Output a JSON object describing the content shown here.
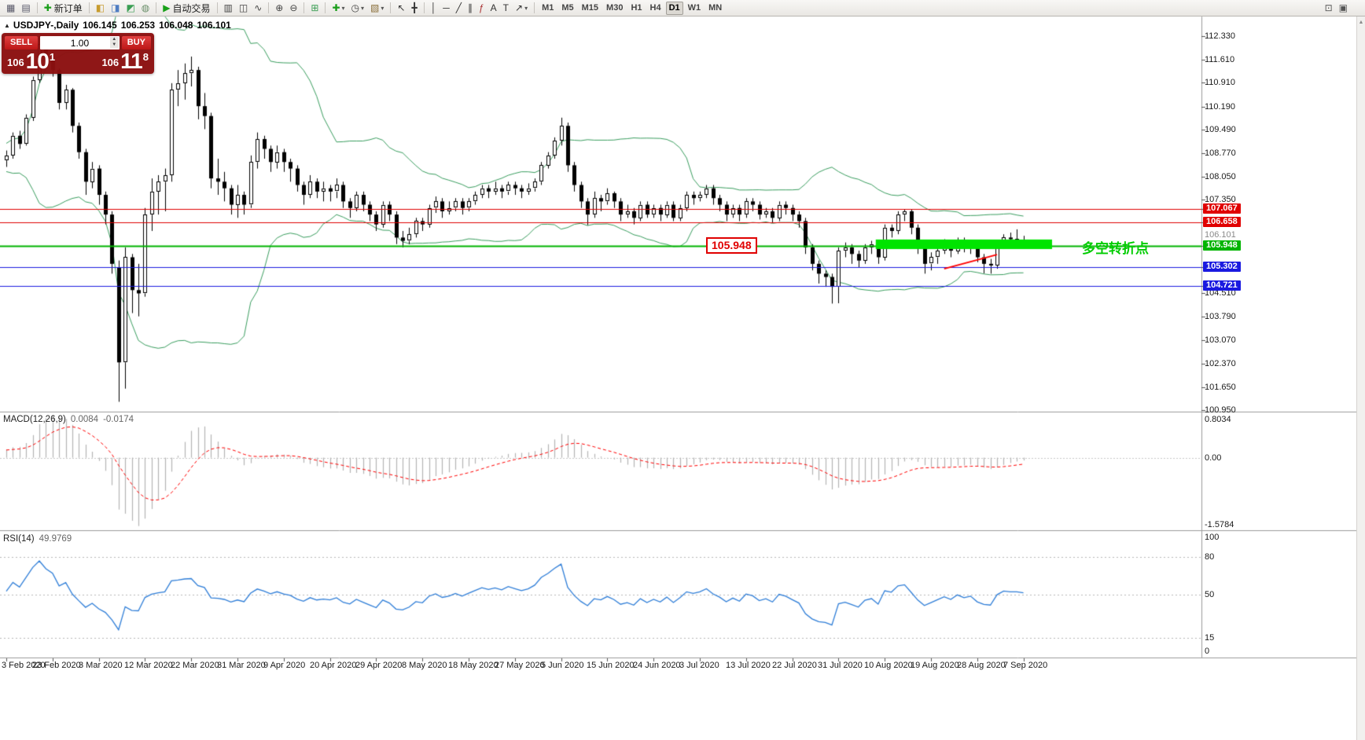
{
  "toolbar": {
    "groups": [
      [
        {
          "name": "new-chart-icon",
          "glyph": "▦",
          "color": "#556"
        },
        {
          "name": "profiles-icon",
          "glyph": "▤",
          "color": "#556"
        }
      ],
      [
        {
          "name": "new-order-button",
          "glyph": "✚",
          "color": "#1a9e1a",
          "label": "新订单"
        }
      ],
      [
        {
          "name": "market-watch-icon",
          "glyph": "◧",
          "color": "#c79b2e"
        },
        {
          "name": "data-window-icon",
          "glyph": "◨",
          "color": "#4f7dc2"
        },
        {
          "name": "navigator-icon",
          "glyph": "◩",
          "color": "#3a9e53"
        },
        {
          "name": "web-terminal-icon",
          "glyph": "◍",
          "color": "#6a8f6a"
        }
      ],
      [
        {
          "name": "autotrading-button",
          "glyph": "▶",
          "color": "#18a018",
          "label": "自动交易"
        }
      ],
      [
        {
          "name": "bar-chart-icon",
          "glyph": "▥",
          "color": "#444"
        },
        {
          "name": "candlestick-chart-icon",
          "glyph": "◫",
          "color": "#444"
        },
        {
          "name": "line-chart-icon",
          "glyph": "∿",
          "color": "#444"
        }
      ],
      [
        {
          "name": "zoom-in-icon",
          "glyph": "⊕",
          "color": "#444"
        },
        {
          "name": "zoom-out-icon",
          "glyph": "⊖",
          "color": "#444"
        }
      ],
      [
        {
          "name": "tile-windows-icon",
          "glyph": "⊞",
          "color": "#3a9e53"
        }
      ],
      [
        {
          "name": "indicators-button",
          "glyph": "✚",
          "color": "#1a9e1a",
          "dropdown": true
        },
        {
          "name": "periods-button",
          "glyph": "◷",
          "color": "#444",
          "dropdown": true
        },
        {
          "name": "templates-button",
          "glyph": "▧",
          "color": "#8a6f3a",
          "dropdown": true
        }
      ],
      [
        {
          "name": "cursor-icon",
          "glyph": "↖",
          "color": "#333"
        },
        {
          "name": "crosshair-icon",
          "glyph": "╋",
          "color": "#333"
        }
      ],
      [
        {
          "name": "vertical-line-icon",
          "glyph": "│",
          "color": "#333"
        },
        {
          "name": "horizontal-line-icon",
          "glyph": "─",
          "color": "#333"
        },
        {
          "name": "trendline-icon",
          "glyph": "╱",
          "color": "#333"
        },
        {
          "name": "channel-icon",
          "glyph": "∥",
          "color": "#333"
        },
        {
          "name": "fibonacci-icon",
          "glyph": "ƒ",
          "color": "#a33"
        },
        {
          "name": "text-icon",
          "glyph": "A",
          "color": "#333"
        },
        {
          "name": "label-icon",
          "glyph": "T",
          "color": "#333"
        },
        {
          "name": "arrows-icon",
          "glyph": "↗",
          "color": "#333",
          "dropdown": true
        }
      ]
    ],
    "timeframes": {
      "items": [
        "M1",
        "M5",
        "M15",
        "M30",
        "H1",
        "H4",
        "D1",
        "W1",
        "MN"
      ],
      "active": "D1"
    },
    "right_items": [
      {
        "name": "print-icon",
        "glyph": "⊡",
        "color": "#555"
      },
      {
        "name": "layout-icon",
        "glyph": "▣",
        "color": "#555"
      }
    ]
  },
  "chart": {
    "header": {
      "marker": "▲",
      "symbol": "USDJPY-,Daily",
      "open": "106.145",
      "high": "106.253",
      "low": "106.048",
      "close": "106.101"
    },
    "trade_panel": {
      "sell_label": "SELL",
      "buy_label": "BUY",
      "volume": "1.00",
      "bid": {
        "prefix": "106",
        "big": "10",
        "sup": "1"
      },
      "ask": {
        "prefix": "106",
        "big": "11",
        "sup": "8"
      }
    },
    "axis": {
      "ticks": [
        "112.330",
        "111.610",
        "110.910",
        "110.190",
        "109.490",
        "108.770",
        "108.050",
        "107.350",
        "104.510",
        "103.790",
        "103.070",
        "102.370",
        "101.650",
        "100.950"
      ],
      "current_price": "106.101",
      "badges": [
        {
          "text": "107.067",
          "color": "#e00000"
        },
        {
          "text": "106.658",
          "color": "#e00000"
        },
        {
          "text": "105.948",
          "color": "#00b400"
        },
        {
          "text": "105.302",
          "color": "#1a1ae0"
        },
        {
          "text": "104.721",
          "color": "#1a1ae0"
        }
      ]
    },
    "hlines": [
      {
        "price": 107.067,
        "color": "#e00000",
        "width": 1
      },
      {
        "price": 106.658,
        "color": "#e00000",
        "width": 1
      },
      {
        "price": 105.948,
        "color": "#00b400",
        "width": 2
      },
      {
        "price": 105.302,
        "color": "#1a1ae0",
        "width": 1
      },
      {
        "price": 104.721,
        "color": "#1a1ae0",
        "width": 1
      }
    ],
    "zone": {
      "start_index": 132,
      "end_x": 1338,
      "price_top": 106.14,
      "price_bottom": 105.85,
      "color": "#00e400"
    },
    "trendline": {
      "start_index": 142,
      "start_price": 105.25,
      "end_index": 150,
      "end_price": 105.68,
      "color": "#ff0000",
      "width": 2
    },
    "annotations": {
      "price_label": {
        "text": "105.948",
        "color": "#e00000"
      },
      "turning_point": {
        "text": "多空转折点",
        "color": "#00cc00"
      }
    },
    "bollinger": {
      "period": 20,
      "deviation": 2,
      "color": "#3a9e5f"
    }
  },
  "macd": {
    "label": "MACD(12,26,9)",
    "value_main": "0.0084",
    "value_signal": "-0.0174",
    "scale": {
      "top": "0.8034",
      "zero": "0.00",
      "bottom": "-1.5784"
    },
    "colors": {
      "hist": "#b4b4b4",
      "signal": "#ff0000"
    }
  },
  "rsi": {
    "label": "RSI(14)",
    "value": "49.9769",
    "period": 14,
    "scale": [
      "100",
      "80",
      "50",
      "15",
      "0"
    ],
    "levels": [
      80,
      50,
      15
    ],
    "color": "#2f7ed8"
  },
  "chart_data": {
    "type": "candlestick",
    "title": "USDJPY-,Daily",
    "symbol": "USDJPY-",
    "timeframe": "Daily",
    "ylim": [
      100.95,
      112.33
    ],
    "grid": "off",
    "x_label_step": 7,
    "x_labels": [
      "3 Feb 2020",
      "23 Feb 2020",
      "3 Mar 2020",
      "12 Mar 2020",
      "22 Mar 2020",
      "31 Mar 2020",
      "9 Apr 2020",
      "20 Apr 2020",
      "29 Apr 2020",
      "8 May 2020",
      "18 May 2020",
      "27 May 2020",
      "5 Jun 2020",
      "15 Jun 2020",
      "24 Jun 2020",
      "3 Jul 2020",
      "13 Jul 2020",
      "22 Jul 2020",
      "31 Jul 2020",
      "10 Aug 2020",
      "19 Aug 2020",
      "28 Aug 2020",
      "7 Sep 2020"
    ],
    "horizontal_levels": [
      107.067,
      106.658,
      105.948,
      105.302,
      104.721
    ],
    "candles": [
      [
        108.55,
        108.85,
        108.35,
        108.7
      ],
      [
        108.7,
        109.4,
        108.6,
        109.3
      ],
      [
        109.3,
        109.45,
        108.9,
        109.05
      ],
      [
        109.05,
        109.95,
        109.0,
        109.85
      ],
      [
        109.85,
        111.1,
        109.75,
        111.0
      ],
      [
        111.0,
        112.33,
        110.9,
        112.1
      ],
      [
        112.1,
        112.2,
        111.4,
        111.6
      ],
      [
        111.6,
        111.75,
        111.1,
        111.3
      ],
      [
        111.3,
        111.35,
        110.1,
        110.3
      ],
      [
        110.3,
        110.85,
        110.1,
        110.7
      ],
      [
        110.7,
        110.75,
        109.4,
        109.6
      ],
      [
        109.6,
        109.7,
        108.6,
        108.8
      ],
      [
        108.8,
        108.9,
        107.5,
        107.9
      ],
      [
        107.9,
        108.5,
        107.7,
        108.3
      ],
      [
        108.3,
        108.4,
        107.2,
        107.5
      ],
      [
        107.5,
        107.6,
        106.6,
        106.9
      ],
      [
        106.9,
        107.0,
        105.1,
        105.4
      ],
      [
        105.3,
        105.5,
        101.2,
        102.4
      ],
      [
        102.4,
        105.9,
        101.6,
        105.6
      ],
      [
        105.6,
        105.7,
        103.9,
        104.6
      ],
      [
        104.6,
        105.4,
        103.8,
        104.5
      ],
      [
        104.5,
        107.1,
        104.4,
        106.9
      ],
      [
        106.9,
        108.0,
        106.4,
        107.6
      ],
      [
        107.6,
        108.1,
        106.9,
        107.9
      ],
      [
        107.9,
        108.3,
        107.0,
        108.1
      ],
      [
        108.1,
        110.9,
        107.9,
        110.7
      ],
      [
        110.7,
        111.3,
        110.2,
        110.9
      ],
      [
        110.9,
        111.5,
        110.4,
        111.2
      ],
      [
        111.2,
        111.71,
        110.8,
        111.3
      ],
      [
        111.3,
        111.4,
        109.8,
        110.2
      ],
      [
        110.2,
        110.6,
        109.5,
        109.9
      ],
      [
        109.9,
        110.0,
        107.7,
        108.0
      ],
      [
        108.0,
        108.6,
        107.5,
        107.9
      ],
      [
        107.9,
        108.2,
        107.3,
        107.7
      ],
      [
        107.7,
        107.8,
        106.9,
        107.2
      ],
      [
        107.2,
        107.8,
        106.8,
        107.5
      ],
      [
        107.5,
        107.6,
        106.9,
        107.2
      ],
      [
        107.2,
        108.7,
        107.1,
        108.5
      ],
      [
        108.5,
        109.4,
        108.3,
        109.2
      ],
      [
        109.2,
        109.3,
        108.6,
        108.9
      ],
      [
        108.9,
        109.0,
        108.2,
        108.5
      ],
      [
        108.5,
        109.0,
        108.3,
        108.8
      ],
      [
        108.8,
        108.9,
        108.2,
        108.5
      ],
      [
        108.5,
        108.6,
        107.9,
        108.3
      ],
      [
        108.3,
        108.4,
        107.6,
        107.8
      ],
      [
        107.8,
        107.9,
        107.2,
        107.5
      ],
      [
        107.5,
        108.1,
        107.4,
        107.9
      ],
      [
        107.9,
        108.0,
        107.4,
        107.6
      ],
      [
        107.6,
        107.9,
        107.3,
        107.7
      ],
      [
        107.7,
        107.8,
        107.3,
        107.6
      ],
      [
        107.6,
        108.0,
        107.4,
        107.8
      ],
      [
        107.8,
        107.9,
        107.1,
        107.3
      ],
      [
        107.3,
        107.4,
        106.8,
        107.1
      ],
      [
        107.1,
        107.6,
        107.0,
        107.5
      ],
      [
        107.5,
        107.6,
        107.0,
        107.2
      ],
      [
        107.2,
        107.3,
        106.7,
        106.9
      ],
      [
        106.9,
        107.0,
        106.4,
        106.6
      ],
      [
        106.6,
        107.3,
        106.5,
        107.2
      ],
      [
        107.2,
        107.3,
        106.7,
        106.9
      ],
      [
        106.9,
        107.0,
        106.0,
        106.2
      ],
      [
        106.2,
        106.4,
        105.9,
        106.1
      ],
      [
        106.1,
        106.5,
        106.0,
        106.3
      ],
      [
        106.3,
        106.8,
        106.2,
        106.7
      ],
      [
        106.7,
        106.8,
        106.4,
        106.6
      ],
      [
        106.6,
        107.2,
        106.5,
        107.1
      ],
      [
        107.1,
        107.45,
        106.95,
        107.3
      ],
      [
        107.3,
        107.4,
        106.8,
        107.0
      ],
      [
        107.0,
        107.3,
        106.9,
        107.1
      ],
      [
        107.1,
        107.4,
        107.0,
        107.3
      ],
      [
        107.3,
        107.4,
        106.9,
        107.1
      ],
      [
        107.1,
        107.4,
        107.0,
        107.3
      ],
      [
        107.3,
        107.6,
        107.2,
        107.5
      ],
      [
        107.5,
        107.8,
        107.4,
        107.7
      ],
      [
        107.7,
        107.8,
        107.4,
        107.6
      ],
      [
        107.6,
        107.9,
        107.5,
        107.7
      ],
      [
        107.7,
        107.8,
        107.4,
        107.6
      ],
      [
        107.6,
        107.9,
        107.5,
        107.8
      ],
      [
        107.8,
        107.9,
        107.5,
        107.7
      ],
      [
        107.7,
        107.8,
        107.4,
        107.6
      ],
      [
        107.6,
        107.85,
        107.5,
        107.7
      ],
      [
        107.7,
        108.0,
        107.6,
        107.9
      ],
      [
        107.9,
        108.5,
        107.8,
        108.4
      ],
      [
        108.4,
        108.8,
        108.3,
        108.7
      ],
      [
        108.7,
        109.25,
        108.6,
        109.15
      ],
      [
        109.15,
        109.85,
        109.0,
        109.6
      ],
      [
        109.6,
        109.7,
        108.2,
        108.4
      ],
      [
        108.4,
        108.5,
        107.6,
        107.8
      ],
      [
        107.8,
        107.9,
        107.1,
        107.3
      ],
      [
        107.3,
        107.4,
        106.58,
        106.9
      ],
      [
        106.9,
        107.6,
        106.8,
        107.4
      ],
      [
        107.4,
        107.5,
        107.0,
        107.3
      ],
      [
        107.3,
        107.7,
        107.2,
        107.55
      ],
      [
        107.55,
        107.6,
        107.1,
        107.3
      ],
      [
        107.3,
        107.4,
        106.7,
        106.9
      ],
      [
        106.9,
        107.2,
        106.8,
        107.0
      ],
      [
        107.0,
        107.1,
        106.6,
        106.8
      ],
      [
        106.8,
        107.3,
        106.7,
        107.2
      ],
      [
        107.2,
        107.3,
        106.8,
        106.9
      ],
      [
        106.9,
        107.2,
        106.8,
        107.1
      ],
      [
        107.1,
        107.2,
        106.7,
        106.9
      ],
      [
        106.9,
        107.3,
        106.8,
        107.2
      ],
      [
        107.2,
        107.3,
        106.7,
        106.8
      ],
      [
        106.8,
        107.2,
        106.7,
        107.1
      ],
      [
        107.1,
        107.6,
        107.0,
        107.5
      ],
      [
        107.5,
        107.6,
        107.2,
        107.4
      ],
      [
        107.4,
        107.6,
        107.3,
        107.5
      ],
      [
        107.5,
        107.8,
        107.4,
        107.7
      ],
      [
        107.7,
        107.8,
        107.2,
        107.4
      ],
      [
        107.4,
        107.5,
        107.0,
        107.2
      ],
      [
        107.2,
        107.3,
        106.7,
        106.9
      ],
      [
        106.9,
        107.2,
        106.8,
        107.1
      ],
      [
        107.1,
        107.2,
        106.7,
        106.9
      ],
      [
        106.9,
        107.4,
        106.8,
        107.3
      ],
      [
        107.3,
        107.4,
        107.0,
        107.2
      ],
      [
        107.2,
        107.3,
        106.75,
        106.9
      ],
      [
        106.9,
        107.1,
        106.8,
        107.0
      ],
      [
        107.0,
        107.1,
        106.65,
        106.8
      ],
      [
        106.8,
        107.3,
        106.7,
        107.2
      ],
      [
        107.2,
        107.3,
        106.9,
        107.1
      ],
      [
        107.1,
        107.2,
        106.7,
        106.9
      ],
      [
        106.9,
        107.0,
        106.5,
        106.7
      ],
      [
        106.7,
        106.8,
        105.7,
        105.9
      ],
      [
        105.9,
        106.0,
        105.2,
        105.4
      ],
      [
        105.4,
        105.5,
        104.8,
        105.1
      ],
      [
        105.1,
        105.2,
        104.7,
        105.0
      ],
      [
        105.0,
        105.1,
        104.19,
        104.7
      ],
      [
        104.7,
        105.9,
        104.2,
        105.8
      ],
      [
        105.8,
        106.05,
        105.6,
        105.9
      ],
      [
        105.9,
        106.0,
        105.4,
        105.7
      ],
      [
        105.7,
        105.8,
        105.3,
        105.5
      ],
      [
        105.5,
        106.0,
        105.4,
        105.9
      ],
      [
        105.9,
        106.1,
        105.7,
        106.0
      ],
      [
        106.0,
        106.1,
        105.4,
        105.6
      ],
      [
        105.6,
        106.6,
        105.5,
        106.5
      ],
      [
        106.5,
        106.6,
        106.2,
        106.4
      ],
      [
        106.4,
        107.0,
        106.3,
        106.9
      ],
      [
        106.9,
        107.05,
        106.7,
        107.0
      ],
      [
        107.0,
        107.05,
        106.3,
        106.5
      ],
      [
        106.5,
        106.6,
        105.7,
        105.9
      ],
      [
        105.9,
        106.0,
        105.1,
        105.4
      ],
      [
        105.4,
        105.75,
        105.2,
        105.6
      ],
      [
        105.6,
        105.9,
        105.4,
        105.8
      ],
      [
        105.8,
        106.15,
        105.7,
        106.0
      ],
      [
        106.0,
        106.1,
        105.6,
        105.8
      ],
      [
        105.8,
        106.2,
        105.7,
        106.1
      ],
      [
        106.1,
        106.2,
        105.75,
        105.9
      ],
      [
        105.9,
        106.1,
        105.7,
        106.0
      ],
      [
        106.0,
        106.05,
        105.45,
        105.6
      ],
      [
        105.6,
        105.7,
        105.11,
        105.4
      ],
      [
        105.4,
        105.55,
        105.1,
        105.35
      ],
      [
        105.35,
        106.05,
        105.25,
        105.95
      ],
      [
        105.95,
        106.3,
        105.85,
        106.2
      ],
      [
        106.2,
        106.35,
        106.0,
        106.15
      ],
      [
        106.15,
        106.45,
        106.05,
        106.15
      ],
      [
        106.145,
        106.253,
        106.048,
        106.101
      ]
    ]
  }
}
